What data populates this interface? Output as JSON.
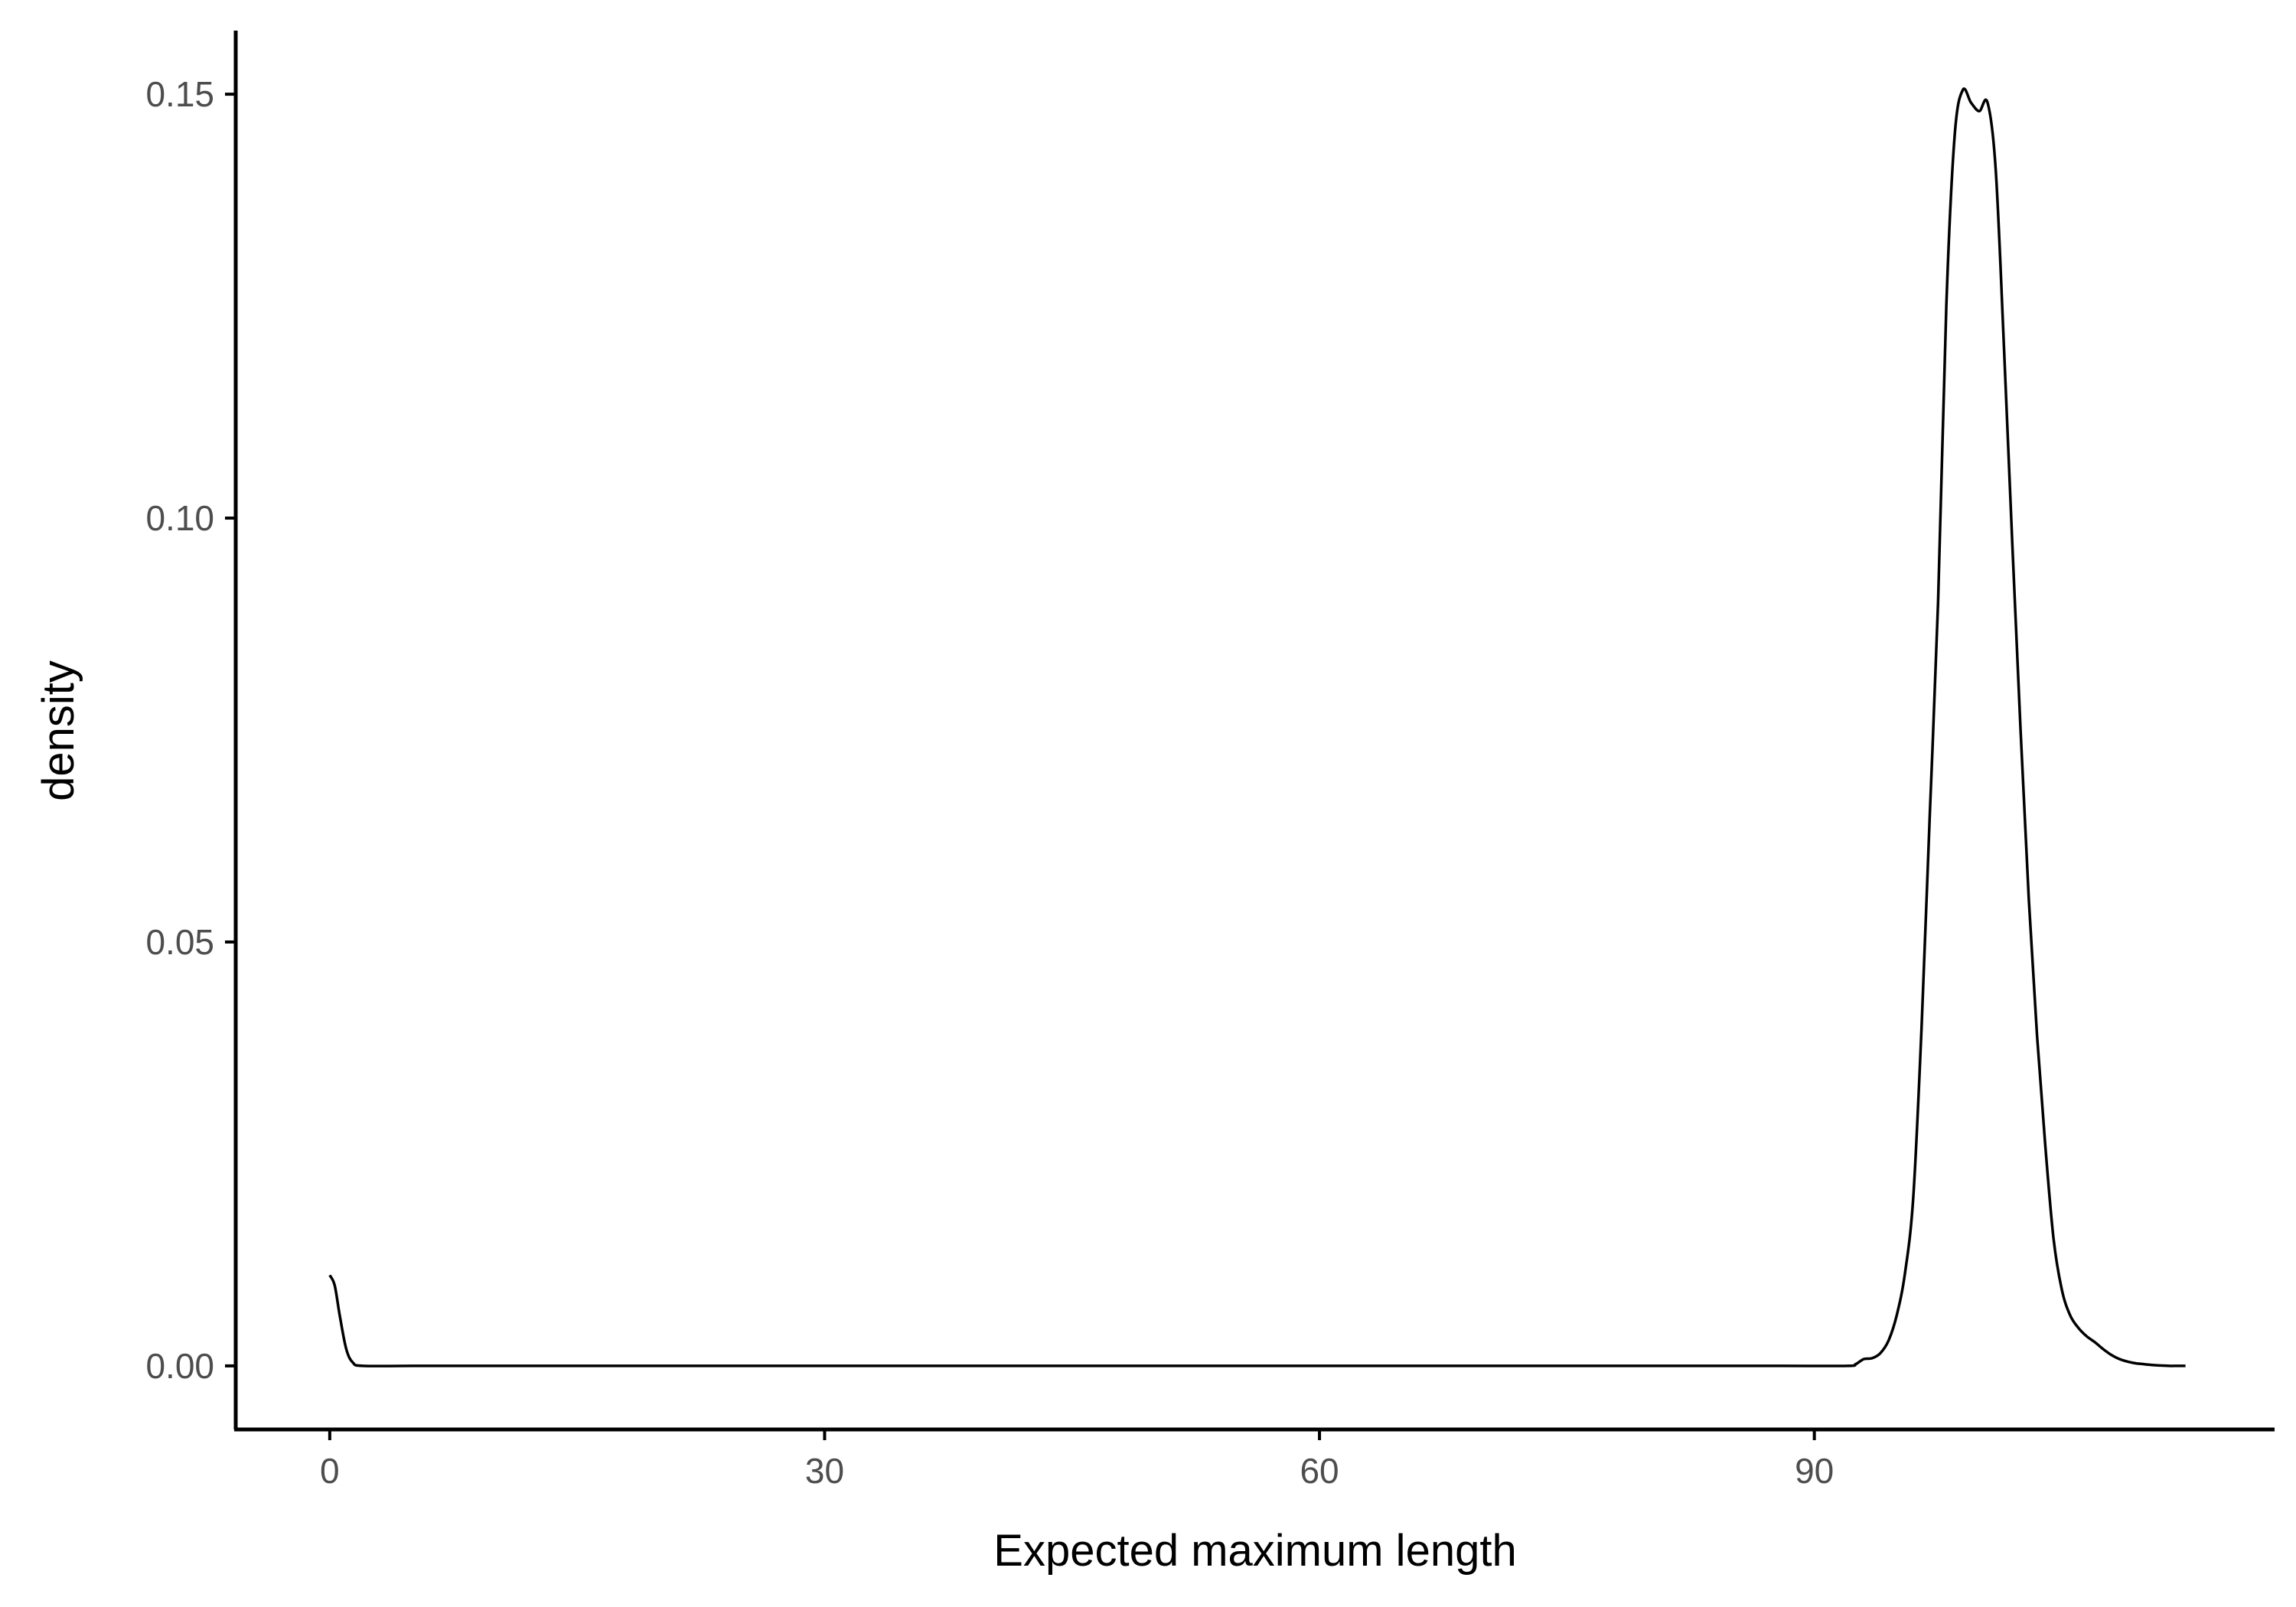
{
  "chart_data": {
    "type": "line",
    "subtype": "density",
    "title": "",
    "xlabel": "Expected maximum length",
    "ylabel": "density",
    "xlim": [
      -5.7,
      117.9
    ],
    "ylim": [
      -0.0075,
      0.1575
    ],
    "x_ticks": [
      0,
      30,
      60,
      90
    ],
    "x_tick_labels": [
      "0",
      "30",
      "60",
      "90"
    ],
    "y_ticks": [
      0.0,
      0.05,
      0.1,
      0.15
    ],
    "y_tick_labels": [
      "0.00",
      "0.05",
      "0.10",
      "0.15"
    ],
    "grid": false,
    "legend": "none",
    "colors": {
      "line": "#000000",
      "axis": "#000000",
      "tick_text": "#4d4d4d"
    },
    "series": [
      {
        "x": [
          0,
          0.3,
          0.6,
          1.0,
          1.4,
          2.0,
          5,
          10,
          20,
          30,
          40,
          50,
          60,
          70,
          80,
          88,
          92.0,
          92.5,
          93.0,
          93.5,
          94.0,
          94.5,
          95.0,
          95.5,
          96.0,
          96.5,
          97.0,
          97.5,
          98.0,
          98.5,
          99.0,
          99.5,
          100.0,
          100.5,
          101.0,
          101.5,
          102.0,
          102.5,
          103.0,
          103.5,
          104.0,
          104.5,
          105.0,
          105.5,
          106.0,
          106.5,
          107.0,
          107.5,
          108.0,
          108.5,
          109.0,
          109.5,
          110.0,
          110.5,
          111.0,
          111.5,
          112.0,
          112.5
        ],
        "y": [
          0.0107,
          0.0095,
          0.006,
          0.002,
          0.0004,
          0.0,
          0.0,
          0.0,
          0.0,
          0.0,
          0.0,
          0.0,
          0.0,
          0.0,
          0.0,
          0.0,
          0.0,
          0.0002,
          0.0008,
          0.0009,
          0.0015,
          0.003,
          0.006,
          0.011,
          0.02,
          0.04,
          0.065,
          0.09,
          0.125,
          0.145,
          0.1505,
          0.149,
          0.148,
          0.149,
          0.141,
          0.12,
          0.097,
          0.075,
          0.055,
          0.039,
          0.026,
          0.015,
          0.009,
          0.006,
          0.0045,
          0.0035,
          0.0028,
          0.002,
          0.0013,
          0.0008,
          0.0005,
          0.0003,
          0.0002,
          0.0001,
          5e-05,
          0.0,
          0.0,
          0.0
        ]
      }
    ]
  }
}
